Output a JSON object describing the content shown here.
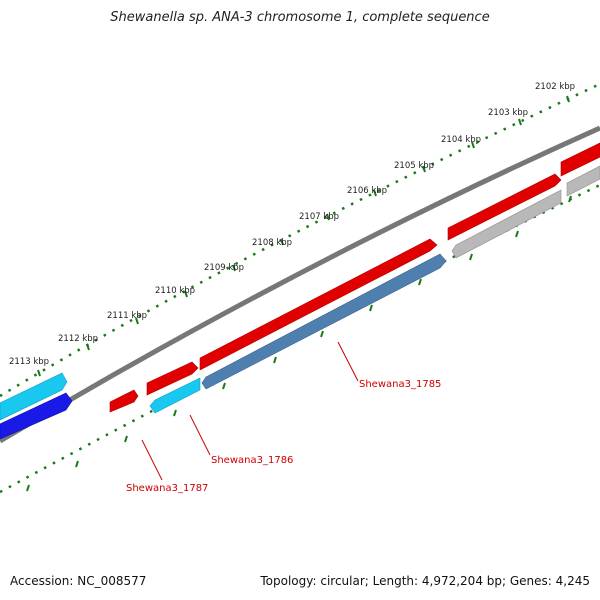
{
  "title": "Shewanella sp. ANA-3 chromosome 1, complete sequence",
  "footer": {
    "accession": "Accession: NC_008577",
    "summary": "Topology: circular; Length: 4,972,204 bp; Genes: 4,245"
  },
  "ticks": [
    "2102 kbp",
    "2103 kbp",
    "2104 kbp",
    "2105 kbp",
    "2106 kbp",
    "2107 kbp",
    "2108 kbp",
    "2109 kbp",
    "2110 kbp",
    "2111 kbp",
    "2112 kbp",
    "2113 kbp"
  ],
  "gene_labels": [
    "Shewana3_1785",
    "Shewana3_1786",
    "Shewana3_1787"
  ],
  "colors": {
    "backbone": "#777777",
    "tick": "#1a7a1a",
    "red_gene": "#e00000",
    "steelblue_gene": "#4f7fae",
    "cyan_gene": "#19c8ee",
    "blue_gene": "#1a1ae8",
    "gray_gene": "#b8b8b8",
    "label": "#cc0000"
  },
  "icons": []
}
